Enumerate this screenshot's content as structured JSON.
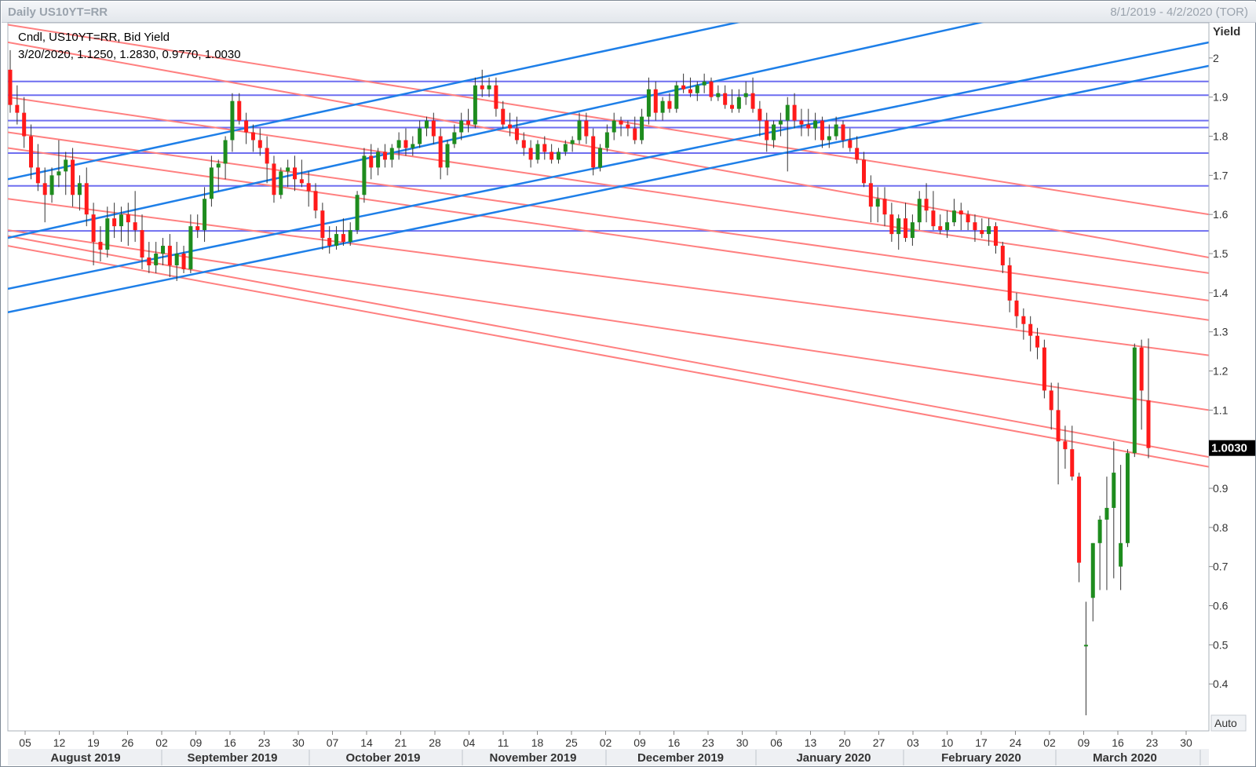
{
  "window": {
    "title": "Daily US10YT=RR",
    "date_range": "8/1/2019 - 4/2/2020 (TOR)"
  },
  "legend": {
    "line1": "Cndl, US10YT=RR, Bid Yield",
    "line2": "3/20/2020, 1.1250, 1.2830, 0.9770, 1.0030"
  },
  "chart_data": {
    "type": "candlestick",
    "y_axis_label": "Yield",
    "y_ticks": [
      "2",
      "1.9",
      "1.8",
      "1.7",
      "1.6",
      "1.5",
      "1.4",
      "1.3",
      "1.2",
      "1.1",
      "1.0030",
      "0.9",
      "0.8",
      "0.7",
      "0.6",
      "0.5",
      "0.4"
    ],
    "y_tick_values": [
      2.0,
      1.9,
      1.8,
      1.7,
      1.6,
      1.5,
      1.4,
      1.3,
      1.2,
      1.1,
      1.003,
      0.9,
      0.8,
      0.7,
      0.6,
      0.5,
      0.4
    ],
    "ylim": [
      0.28,
      2.09
    ],
    "last_value": "1.0030",
    "auto_label": "Auto",
    "day_ticks": [
      "05",
      "12",
      "19",
      "26",
      "02",
      "09",
      "16",
      "23",
      "30",
      "07",
      "14",
      "21",
      "28",
      "04",
      "11",
      "18",
      "25",
      "02",
      "09",
      "16",
      "23",
      "30",
      "06",
      "13",
      "20",
      "27",
      "03",
      "10",
      "17",
      "24",
      "02",
      "09",
      "16",
      "23",
      "30"
    ],
    "months": [
      "August 2019",
      "September 2019",
      "October 2019",
      "November 2019",
      "December 2019",
      "January 2020",
      "February 2020",
      "March 2020"
    ],
    "colors": {
      "up": "#1e8c1e",
      "down": "#ff1a1a",
      "support": "#ff8080",
      "channel": "#1e7fe8",
      "level": "#6e6ef0"
    },
    "horizontal_levels": [
      1.94,
      1.905,
      1.84,
      1.822,
      1.757,
      1.673,
      1.558
    ],
    "channel_lines": [
      [
        1.69,
        2.35
      ],
      [
        1.54,
        2.22
      ],
      [
        1.41,
        2.04
      ],
      [
        1.35,
        1.98
      ]
    ],
    "support_lines": [
      [
        2.085,
        1.6
      ],
      [
        2.04,
        1.49
      ],
      [
        1.9,
        1.45
      ],
      [
        1.81,
        1.38
      ],
      [
        1.77,
        1.33
      ],
      [
        1.64,
        1.24
      ],
      [
        1.56,
        1.1
      ],
      [
        1.545,
        0.98
      ],
      [
        1.52,
        0.955
      ]
    ],
    "candles": [
      [
        1.97,
        2.02,
        1.86,
        1.88
      ],
      [
        1.88,
        1.93,
        1.83,
        1.86
      ],
      [
        1.86,
        1.9,
        1.77,
        1.8
      ],
      [
        1.8,
        1.83,
        1.69,
        1.72
      ],
      [
        1.72,
        1.78,
        1.66,
        1.68
      ],
      [
        1.68,
        1.72,
        1.58,
        1.65
      ],
      [
        1.65,
        1.72,
        1.63,
        1.7
      ],
      [
        1.7,
        1.79,
        1.67,
        1.71
      ],
      [
        1.71,
        1.76,
        1.65,
        1.74
      ],
      [
        1.74,
        1.77,
        1.62,
        1.65
      ],
      [
        1.65,
        1.7,
        1.61,
        1.68
      ],
      [
        1.68,
        1.72,
        1.57,
        1.6
      ],
      [
        1.6,
        1.63,
        1.47,
        1.53
      ],
      [
        1.53,
        1.57,
        1.48,
        1.51
      ],
      [
        1.51,
        1.62,
        1.49,
        1.59
      ],
      [
        1.59,
        1.63,
        1.54,
        1.57
      ],
      [
        1.57,
        1.62,
        1.53,
        1.6
      ],
      [
        1.6,
        1.63,
        1.52,
        1.58
      ],
      [
        1.58,
        1.66,
        1.53,
        1.56
      ],
      [
        1.56,
        1.6,
        1.46,
        1.49
      ],
      [
        1.49,
        1.53,
        1.45,
        1.47
      ],
      [
        1.47,
        1.53,
        1.45,
        1.5
      ],
      [
        1.5,
        1.54,
        1.47,
        1.52
      ],
      [
        1.52,
        1.55,
        1.44,
        1.47
      ],
      [
        1.47,
        1.53,
        1.43,
        1.5
      ],
      [
        1.5,
        1.52,
        1.45,
        1.46
      ],
      [
        1.46,
        1.6,
        1.45,
        1.57
      ],
      [
        1.57,
        1.6,
        1.54,
        1.56
      ],
      [
        1.56,
        1.67,
        1.53,
        1.64
      ],
      [
        1.64,
        1.75,
        1.62,
        1.72
      ],
      [
        1.72,
        1.74,
        1.66,
        1.73
      ],
      [
        1.73,
        1.8,
        1.69,
        1.79
      ],
      [
        1.79,
        1.91,
        1.76,
        1.89
      ],
      [
        1.89,
        1.91,
        1.83,
        1.84
      ],
      [
        1.84,
        1.86,
        1.78,
        1.81
      ],
      [
        1.81,
        1.83,
        1.76,
        1.79
      ],
      [
        1.79,
        1.82,
        1.75,
        1.77
      ],
      [
        1.77,
        1.8,
        1.68,
        1.73
      ],
      [
        1.73,
        1.75,
        1.63,
        1.65
      ],
      [
        1.65,
        1.72,
        1.64,
        1.71
      ],
      [
        1.71,
        1.74,
        1.67,
        1.72
      ],
      [
        1.72,
        1.75,
        1.66,
        1.69
      ],
      [
        1.69,
        1.74,
        1.67,
        1.68
      ],
      [
        1.68,
        1.71,
        1.62,
        1.66
      ],
      [
        1.66,
        1.68,
        1.59,
        1.61
      ],
      [
        1.61,
        1.63,
        1.51,
        1.54
      ],
      [
        1.54,
        1.57,
        1.5,
        1.52
      ],
      [
        1.52,
        1.57,
        1.51,
        1.55
      ],
      [
        1.55,
        1.59,
        1.52,
        1.53
      ],
      [
        1.53,
        1.58,
        1.52,
        1.56
      ],
      [
        1.56,
        1.66,
        1.55,
        1.65
      ],
      [
        1.65,
        1.77,
        1.63,
        1.75
      ],
      [
        1.75,
        1.78,
        1.69,
        1.72
      ],
      [
        1.72,
        1.77,
        1.7,
        1.76
      ],
      [
        1.76,
        1.78,
        1.72,
        1.74
      ],
      [
        1.74,
        1.78,
        1.72,
        1.77
      ],
      [
        1.77,
        1.81,
        1.74,
        1.79
      ],
      [
        1.79,
        1.82,
        1.75,
        1.77
      ],
      [
        1.77,
        1.8,
        1.75,
        1.78
      ],
      [
        1.78,
        1.84,
        1.77,
        1.82
      ],
      [
        1.82,
        1.85,
        1.8,
        1.84
      ],
      [
        1.84,
        1.86,
        1.78,
        1.8
      ],
      [
        1.8,
        1.82,
        1.69,
        1.72
      ],
      [
        1.72,
        1.79,
        1.7,
        1.78
      ],
      [
        1.78,
        1.83,
        1.77,
        1.81
      ],
      [
        1.81,
        1.86,
        1.79,
        1.84
      ],
      [
        1.84,
        1.87,
        1.81,
        1.83
      ],
      [
        1.83,
        1.95,
        1.82,
        1.93
      ],
      [
        1.93,
        1.97,
        1.9,
        1.92
      ],
      [
        1.92,
        1.95,
        1.9,
        1.93
      ],
      [
        1.93,
        1.95,
        1.85,
        1.87
      ],
      [
        1.87,
        1.89,
        1.82,
        1.83
      ],
      [
        1.83,
        1.86,
        1.8,
        1.82
      ],
      [
        1.82,
        1.85,
        1.78,
        1.79
      ],
      [
        1.79,
        1.81,
        1.75,
        1.77
      ],
      [
        1.77,
        1.79,
        1.72,
        1.74
      ],
      [
        1.74,
        1.79,
        1.73,
        1.78
      ],
      [
        1.78,
        1.8,
        1.74,
        1.76
      ],
      [
        1.76,
        1.78,
        1.73,
        1.74
      ],
      [
        1.74,
        1.77,
        1.73,
        1.76
      ],
      [
        1.76,
        1.79,
        1.75,
        1.78
      ],
      [
        1.78,
        1.8,
        1.76,
        1.79
      ],
      [
        1.79,
        1.86,
        1.78,
        1.84
      ],
      [
        1.84,
        1.86,
        1.78,
        1.8
      ],
      [
        1.8,
        1.82,
        1.7,
        1.72
      ],
      [
        1.72,
        1.78,
        1.71,
        1.77
      ],
      [
        1.77,
        1.83,
        1.76,
        1.81
      ],
      [
        1.81,
        1.86,
        1.79,
        1.84
      ],
      [
        1.84,
        1.85,
        1.8,
        1.83
      ],
      [
        1.83,
        1.84,
        1.8,
        1.82
      ],
      [
        1.82,
        1.85,
        1.78,
        1.79
      ],
      [
        1.79,
        1.87,
        1.78,
        1.85
      ],
      [
        1.85,
        1.95,
        1.83,
        1.92
      ],
      [
        1.92,
        1.94,
        1.84,
        1.86
      ],
      [
        1.86,
        1.9,
        1.84,
        1.89
      ],
      [
        1.89,
        1.91,
        1.86,
        1.87
      ],
      [
        1.87,
        1.94,
        1.86,
        1.93
      ],
      [
        1.93,
        1.96,
        1.91,
        1.92
      ],
      [
        1.92,
        1.95,
        1.9,
        1.91
      ],
      [
        1.91,
        1.94,
        1.89,
        1.93
      ],
      [
        1.93,
        1.96,
        1.91,
        1.94
      ],
      [
        1.94,
        1.95,
        1.89,
        1.9
      ],
      [
        1.9,
        1.93,
        1.89,
        1.91
      ],
      [
        1.91,
        1.93,
        1.87,
        1.88
      ],
      [
        1.88,
        1.92,
        1.86,
        1.87
      ],
      [
        1.87,
        1.92,
        1.86,
        1.9
      ],
      [
        1.9,
        1.94,
        1.88,
        1.91
      ],
      [
        1.91,
        1.95,
        1.86,
        1.87
      ],
      [
        1.87,
        1.89,
        1.8,
        1.84
      ],
      [
        1.84,
        1.86,
        1.76,
        1.79
      ],
      [
        1.79,
        1.84,
        1.77,
        1.83
      ],
      [
        1.83,
        1.86,
        1.8,
        1.84
      ],
      [
        1.84,
        1.9,
        1.71,
        1.88
      ],
      [
        1.88,
        1.91,
        1.82,
        1.84
      ],
      [
        1.84,
        1.87,
        1.8,
        1.83
      ],
      [
        1.83,
        1.87,
        1.8,
        1.82
      ],
      [
        1.82,
        1.86,
        1.79,
        1.84
      ],
      [
        1.84,
        1.85,
        1.77,
        1.79
      ],
      [
        1.79,
        1.83,
        1.77,
        1.8
      ],
      [
        1.8,
        1.85,
        1.79,
        1.83
      ],
      [
        1.83,
        1.84,
        1.77,
        1.79
      ],
      [
        1.79,
        1.82,
        1.76,
        1.77
      ],
      [
        1.77,
        1.8,
        1.73,
        1.74
      ],
      [
        1.74,
        1.76,
        1.67,
        1.68
      ],
      [
        1.68,
        1.7,
        1.58,
        1.62
      ],
      [
        1.62,
        1.67,
        1.58,
        1.64
      ],
      [
        1.64,
        1.67,
        1.57,
        1.6
      ],
      [
        1.6,
        1.63,
        1.53,
        1.55
      ],
      [
        1.55,
        1.6,
        1.51,
        1.59
      ],
      [
        1.59,
        1.63,
        1.53,
        1.54
      ],
      [
        1.54,
        1.6,
        1.52,
        1.58
      ],
      [
        1.58,
        1.66,
        1.56,
        1.64
      ],
      [
        1.64,
        1.68,
        1.58,
        1.61
      ],
      [
        1.61,
        1.66,
        1.56,
        1.57
      ],
      [
        1.57,
        1.6,
        1.55,
        1.56
      ],
      [
        1.56,
        1.61,
        1.54,
        1.58
      ],
      [
        1.58,
        1.64,
        1.57,
        1.61
      ],
      [
        1.61,
        1.63,
        1.56,
        1.6
      ],
      [
        1.6,
        1.61,
        1.56,
        1.58
      ],
      [
        1.58,
        1.6,
        1.53,
        1.56
      ],
      [
        1.56,
        1.59,
        1.54,
        1.55
      ],
      [
        1.55,
        1.59,
        1.52,
        1.57
      ],
      [
        1.57,
        1.58,
        1.5,
        1.52
      ],
      [
        1.52,
        1.53,
        1.45,
        1.47
      ],
      [
        1.47,
        1.49,
        1.35,
        1.38
      ],
      [
        1.38,
        1.4,
        1.31,
        1.34
      ],
      [
        1.34,
        1.36,
        1.28,
        1.32
      ],
      [
        1.32,
        1.34,
        1.25,
        1.29
      ],
      [
        1.29,
        1.31,
        1.23,
        1.26
      ],
      [
        1.26,
        1.28,
        1.13,
        1.15
      ],
      [
        1.15,
        1.17,
        1.05,
        1.1
      ],
      [
        1.1,
        1.17,
        0.91,
        1.02
      ],
      [
        1.02,
        1.06,
        0.95,
        1.0
      ],
      [
        1.0,
        1.06,
        0.92,
        0.93
      ],
      [
        0.93,
        0.94,
        0.66,
        0.71
      ],
      [
        0.5,
        0.61,
        0.32,
        0.5
      ],
      [
        0.62,
        0.76,
        0.56,
        0.76
      ],
      [
        0.76,
        0.83,
        0.64,
        0.82
      ],
      [
        0.82,
        0.93,
        0.64,
        0.85
      ],
      [
        0.85,
        1.02,
        0.67,
        0.94
      ],
      [
        0.7,
        0.96,
        0.64,
        0.76
      ],
      [
        0.76,
        1.0,
        0.75,
        0.99
      ],
      [
        0.99,
        1.27,
        0.98,
        1.26
      ],
      [
        1.26,
        1.28,
        1.05,
        1.15
      ],
      [
        1.125,
        1.283,
        0.977,
        1.003
      ]
    ]
  }
}
